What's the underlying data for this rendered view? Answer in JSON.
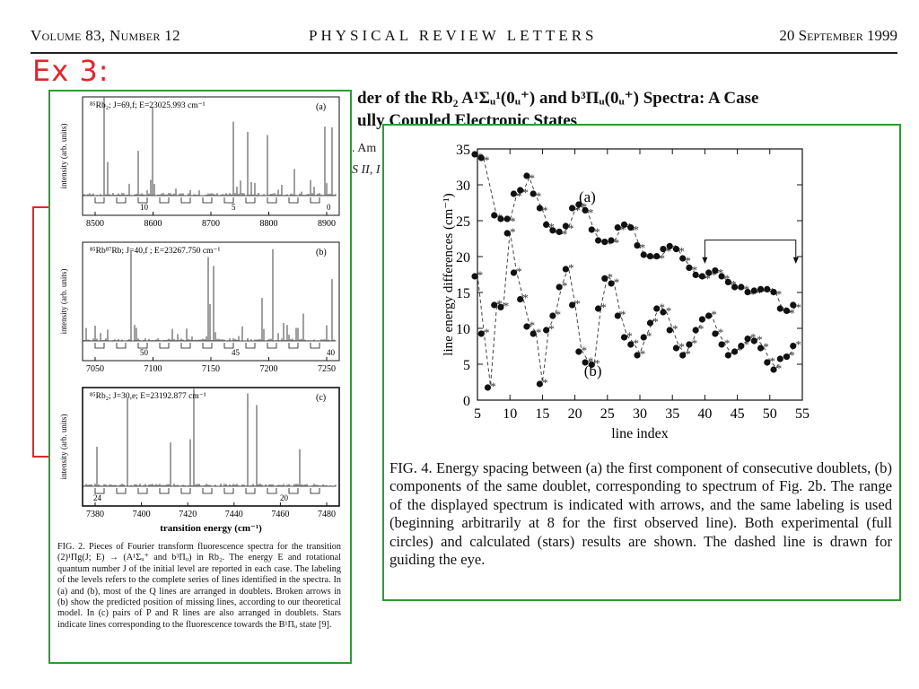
{
  "header": {
    "volume": "Volume 83, Number 12",
    "journal": "PHYSICAL REVIEW LETTERS",
    "date": "20 September 1999"
  },
  "slide_label": "Ex 3:",
  "title_line1": "der of the Rb₂ A¹Σᵤ¹(0ᵤ⁺) and b³Πᵤ(0ᵤ⁺) Spectra: A Case",
  "title_line2": "ully Coupled Electronic States",
  "background_fragments": [
    ". Am",
    "S II, I"
  ],
  "accent_colors": {
    "red": "#e0262b",
    "green": "#2f9a35"
  },
  "fig2": {
    "panels": [
      {
        "label": "(a)",
        "spec_title": "⁸⁵Rb₂; J=69,f; E=23025.993 cm⁻¹",
        "ylabel": "intensity (arb. units)",
        "x_ticks": [
          "8500",
          "8600",
          "8700",
          "8800",
          "8900"
        ],
        "level_labels": [
          "10",
          "5",
          "0"
        ]
      },
      {
        "label": "(b)",
        "spec_title": "⁸⁵Rb⁸⁷Rb; J=40,f ; E=23267.750 cm⁻¹",
        "ylabel": "intensity (arb. units)",
        "x_ticks": [
          "7050",
          "7100",
          "7150",
          "7200",
          "7250"
        ],
        "level_labels": [
          "50",
          "45",
          "40"
        ]
      },
      {
        "label": "(c)",
        "spec_title": "⁸⁵Rb₂; J=30,e; E=23192.877 cm⁻¹",
        "ylabel": "intensity (arb. units)",
        "x_ticks": [
          "7380",
          "7400",
          "7420",
          "7440",
          "7460",
          "7480"
        ],
        "level_labels": [
          "24",
          "20"
        ],
        "xlabel": "transition energy (cm⁻¹)"
      }
    ],
    "caption": "FIG. 2.  Pieces of Fourier transform fluorescence spectra for the transition (2)¹Πg(J; E) → (A¹Σᵤ⁺ and b³Πᵤ) in Rb₂. The energy E and rotational quantum number J of the initial level are reported in each case. The labeling of the levels refers to the complete series of lines identified in the spectra. In (a) and (b), most of the Q lines are arranged in doublets. Broken arrows in (b) show the predicted position of missing lines, according to our theoretical model. In (c) pairs of P and R lines are also arranged in doublets. Stars indicate lines corresponding to the fluorescence towards the B¹Πᵤ state [9]."
  },
  "fig4": {
    "caption": "FIG. 4.  Energy spacing between (a) the first component of consecutive doublets, (b) components of the same doublet, corresponding to spectrum of Fig. 2b. The range of the displayed spectrum is indicated with arrows, and the same labeling is used (beginning arbitrarily at 8 for the first observed line). Both experimental (full circles) and calculated (stars) results are shown. The dashed line is drawn for guiding the eye."
  },
  "chart_data": {
    "type": "scatter",
    "xlabel": "line index",
    "ylabel": "line energy differences (cm⁻¹)",
    "xlim": [
      5,
      55
    ],
    "ylim": [
      0,
      35
    ],
    "x_ticks": [
      5,
      10,
      15,
      20,
      25,
      30,
      35,
      40,
      45,
      50,
      55
    ],
    "y_ticks": [
      0,
      5,
      10,
      15,
      20,
      25,
      30,
      35
    ],
    "annotations": [
      "(a)",
      "(b)"
    ],
    "range_arrows": [
      40,
      54
    ],
    "series": [
      {
        "x": [
          5,
          6,
          8,
          9,
          10,
          11,
          12,
          13,
          14,
          15,
          16,
          17,
          18,
          19,
          20,
          21,
          22,
          23,
          24,
          25,
          26,
          27,
          28,
          29,
          30,
          31,
          32,
          33,
          34,
          35,
          36,
          37,
          38,
          39,
          40,
          41,
          42,
          43,
          44,
          45,
          46,
          47,
          48,
          49,
          50,
          51,
          52,
          53,
          54
        ],
        "y": [
          34,
          33.5,
          25.5,
          25,
          25,
          28.5,
          29,
          31,
          28.5,
          26.5,
          24.2,
          23.4,
          23.2,
          24,
          26.5,
          27,
          26.2,
          23.5,
          22,
          21.8,
          22,
          23.8,
          24.2,
          23.8,
          21.3,
          20,
          19.8,
          19.8,
          20.8,
          21.2,
          20.8,
          19.5,
          18.2,
          17.2,
          17,
          17.5,
          17.8,
          17,
          16.2,
          15.5,
          15.5,
          14.8,
          15,
          15.2,
          15.2,
          14.8,
          12.5,
          12.2,
          13
        ]
      },
      {
        "x": [
          5,
          6,
          7,
          8,
          9,
          10,
          11,
          12,
          13,
          14,
          15,
          16,
          17,
          18,
          19,
          20,
          21,
          22,
          23,
          24,
          25,
          26,
          27,
          28,
          29,
          30,
          31,
          32,
          33,
          34,
          35,
          36,
          37,
          38,
          39,
          40,
          41,
          42,
          43,
          44,
          45,
          46,
          47,
          48,
          49,
          50,
          51,
          52,
          53,
          54
        ],
        "y": [
          17.5,
          9.5,
          2,
          13.5,
          13.2,
          23.5,
          18,
          14.3,
          10.5,
          9.5,
          2.5,
          10,
          12,
          16,
          18.5,
          13.5,
          7,
          5.5,
          5.2,
          13,
          17.2,
          16.5,
          12,
          9,
          8,
          6.5,
          9,
          11,
          13,
          12.5,
          10,
          7.5,
          6.5,
          8,
          10,
          11.5,
          12,
          9.5,
          8,
          6.5,
          7,
          7.8,
          8.8,
          8.5,
          7.5,
          5.5,
          4.5,
          6,
          6.3,
          7.8
        ]
      }
    ]
  }
}
